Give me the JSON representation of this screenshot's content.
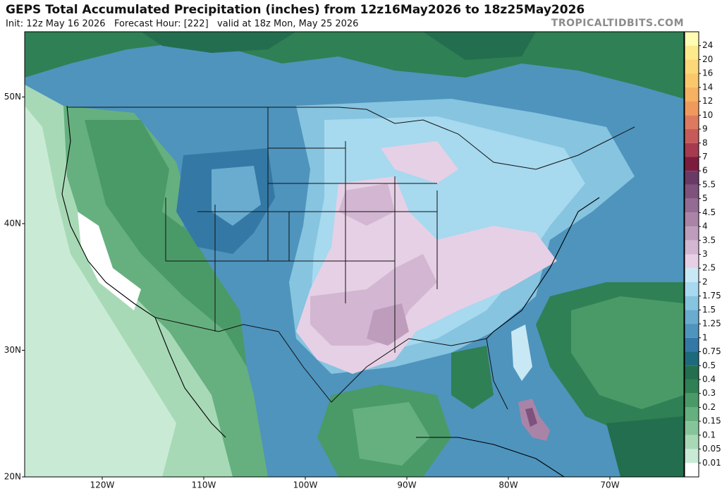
{
  "header": {
    "title": "GEPS Total Accumulated Precipitation (inches) from 12z16May2026 to 18z25May2026",
    "subtitle": "Init: 12z May 16 2026   Forecast Hour: [222]   valid at 18z Mon, May 25 2026",
    "watermark": "TROPICALTIDBITS.COM"
  },
  "map": {
    "latitudes": [
      {
        "value": 50,
        "label": "50N"
      },
      {
        "value": 40,
        "label": "40N"
      },
      {
        "value": 30,
        "label": "30N"
      },
      {
        "value": 20,
        "label": "20N"
      }
    ],
    "longitudes": [
      {
        "value": -120,
        "label": "120W"
      },
      {
        "value": -110,
        "label": "110W"
      },
      {
        "value": -100,
        "label": "100W"
      },
      {
        "value": -90,
        "label": "90W"
      },
      {
        "value": -80,
        "label": "80W"
      },
      {
        "value": -70,
        "label": "70W"
      }
    ]
  },
  "colorbar": {
    "levels": [
      24,
      20,
      16,
      14,
      12,
      10,
      9,
      8,
      7,
      6,
      5.5,
      5,
      4.5,
      4,
      3.5,
      3,
      2.5,
      2,
      1.75,
      1.5,
      1.25,
      1,
      0.75,
      0.5,
      0.4,
      0.3,
      0.2,
      0.15,
      0.1,
      0.05,
      0.01
    ],
    "colors": [
      "#fffcb4",
      "#fdea8c",
      "#fcd87a",
      "#fac86a",
      "#f6b162",
      "#ef9a5c",
      "#dc7a60",
      "#c65a5a",
      "#a63a4e",
      "#7c1d3e",
      "#6a3a66",
      "#7e527d",
      "#946b93",
      "#a984a7",
      "#be9dbc",
      "#d3b7d2",
      "#e6d0e5",
      "#c8e8f5",
      "#a7d9ef",
      "#86c4e0",
      "#69acd0",
      "#4e94bd",
      "#3479a5",
      "#1c6a7c",
      "#236e4e",
      "#2f8054",
      "#4a9a68",
      "#66b07f",
      "#86c59a",
      "#a8d9b6",
      "#c9ebd6",
      "#ffffff"
    ]
  }
}
